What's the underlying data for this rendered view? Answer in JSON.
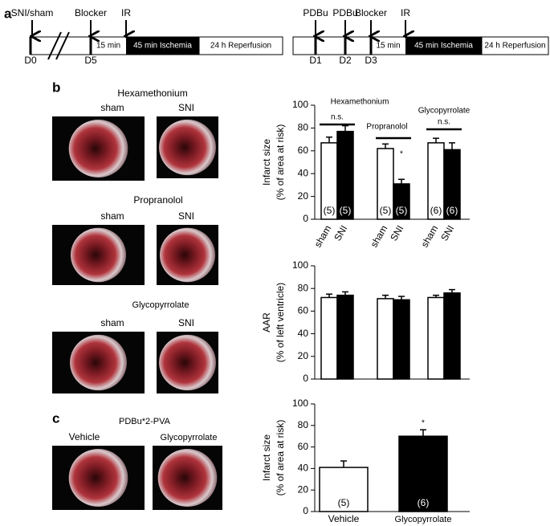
{
  "panel_labels": [
    "a",
    "b",
    "c"
  ],
  "timeline_left": {
    "events": [
      "SNI/sham",
      "Blocker",
      "IR"
    ],
    "days": [
      "D0",
      "D5"
    ],
    "segments": [
      "15 min",
      "45 min Ischemia",
      "24 h Reperfusion"
    ]
  },
  "timeline_right": {
    "events": [
      "PDBu",
      "PDBu",
      "Blocker",
      "IR"
    ],
    "days": [
      "D1",
      "D2",
      "D3"
    ],
    "segments": [
      "15 min",
      "45 min Ischemia",
      "24 h Reperfusion"
    ]
  },
  "photo_groups": [
    {
      "title": "Hexamethonium",
      "labels": [
        "sham",
        "SNI"
      ]
    },
    {
      "title": "Propranolol",
      "labels": [
        "sham",
        "SNI"
      ]
    },
    {
      "title": "Glycopyrrolate",
      "labels": [
        "sham",
        "SNI"
      ]
    },
    {
      "title": "PDBu*2-PVA",
      "labels": [
        "Vehicle",
        "Glycopyrrolate"
      ]
    }
  ],
  "chart_data": [
    {
      "type": "bar",
      "ylabel": [
        "Infarct size",
        "(% of area at risk)"
      ],
      "categories": [
        "sham",
        "SNI",
        "sham",
        "SNI",
        "sham",
        "SNI"
      ],
      "values": [
        67,
        77,
        62,
        31,
        67,
        61
      ],
      "errors": [
        5,
        5,
        4,
        4,
        4,
        6
      ],
      "colors": [
        "#ffffff",
        "#000000",
        "#ffffff",
        "#000000",
        "#ffffff",
        "#000000"
      ],
      "n_labels": [
        "(5)",
        "(5)",
        "(5)",
        "(5)",
        "(6)",
        "(6)"
      ],
      "group_labels": [
        "Hexamethonium",
        "Propranolol",
        "Glycopyrrolate"
      ],
      "annotations": [
        "n.s.",
        "*",
        "n.s."
      ],
      "ylim": [
        0,
        100
      ],
      "yticks": [
        0,
        20,
        40,
        60,
        80,
        100
      ]
    },
    {
      "type": "bar",
      "ylabel": [
        "AAR",
        "(% of left ventricle)"
      ],
      "values": [
        72,
        74,
        71,
        70,
        72,
        76
      ],
      "errors": [
        3,
        3,
        3,
        3,
        2,
        3
      ],
      "colors": [
        "#ffffff",
        "#000000",
        "#ffffff",
        "#000000",
        "#ffffff",
        "#000000"
      ],
      "ylim": [
        0,
        100
      ],
      "yticks": [
        0,
        20,
        40,
        60,
        80,
        100
      ]
    },
    {
      "type": "bar",
      "ylabel": [
        "Infarct size",
        "(% of area at risk)"
      ],
      "categories": [
        "Vehicle",
        "Glycopyrrolate"
      ],
      "values": [
        41,
        70
      ],
      "errors": [
        6,
        6
      ],
      "colors": [
        "#ffffff",
        "#000000"
      ],
      "n_labels": [
        "(5)",
        "(6)"
      ],
      "annotations": [
        "*"
      ],
      "ylim": [
        0,
        100
      ],
      "yticks": [
        0,
        20,
        40,
        60,
        80,
        100
      ]
    }
  ]
}
